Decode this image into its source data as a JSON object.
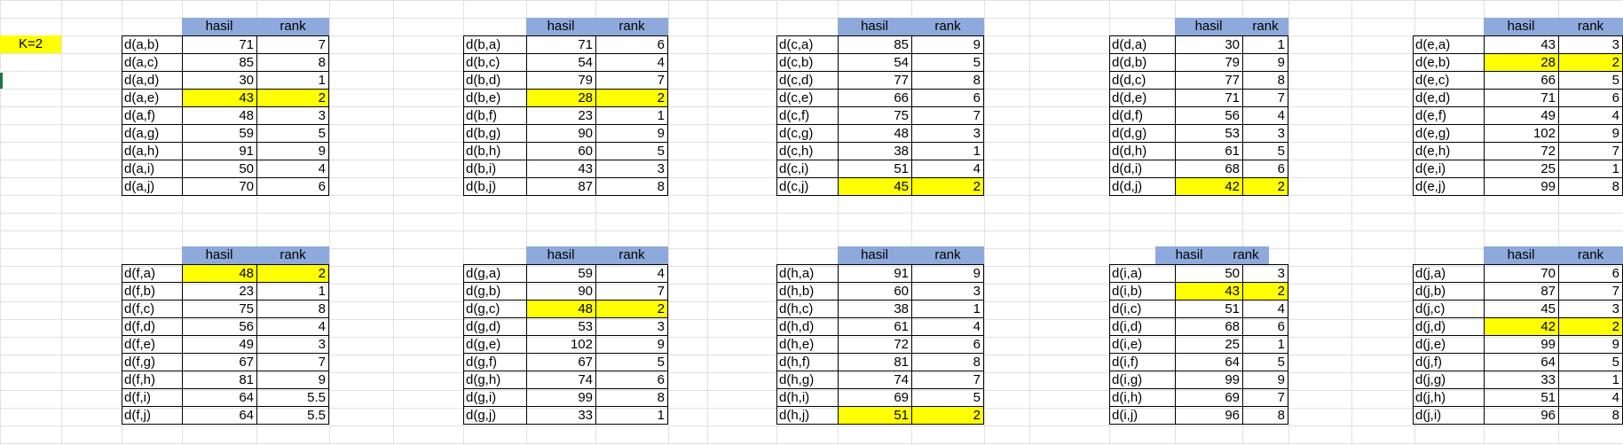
{
  "k_label": "K=2",
  "highlight_color": "#ffff00",
  "header_color": "#8ea9db",
  "headers": {
    "col1": "hasil",
    "col2": "rank"
  },
  "tables": [
    {
      "rows": [
        {
          "label": "d(a,b)",
          "hasil": "71",
          "rank": "7"
        },
        {
          "label": "d(a,c)",
          "hasil": "85",
          "rank": "8"
        },
        {
          "label": "d(a,d)",
          "hasil": "30",
          "rank": "1"
        },
        {
          "label": "d(a,e)",
          "hasil": "43",
          "rank": "2",
          "hl": true
        },
        {
          "label": "d(a,f)",
          "hasil": "48",
          "rank": "3"
        },
        {
          "label": "d(a,g)",
          "hasil": "59",
          "rank": "5"
        },
        {
          "label": "d(a,h)",
          "hasil": "91",
          "rank": "9"
        },
        {
          "label": "d(a,i)",
          "hasil": "50",
          "rank": "4"
        },
        {
          "label": "d(a,j)",
          "hasil": "70",
          "rank": "6"
        }
      ]
    },
    {
      "rows": [
        {
          "label": "d(b,a)",
          "hasil": "71",
          "rank": "6"
        },
        {
          "label": "d(b,c)",
          "hasil": "54",
          "rank": "4"
        },
        {
          "label": "d(b,d)",
          "hasil": "79",
          "rank": "7"
        },
        {
          "label": "d(b,e)",
          "hasil": "28",
          "rank": "2",
          "hl": true
        },
        {
          "label": "d(b,f)",
          "hasil": "23",
          "rank": "1"
        },
        {
          "label": "d(b,g)",
          "hasil": "90",
          "rank": "9"
        },
        {
          "label": "d(b,h)",
          "hasil": "60",
          "rank": "5"
        },
        {
          "label": "d(b,i)",
          "hasil": "43",
          "rank": "3"
        },
        {
          "label": "d(b,j)",
          "hasil": "87",
          "rank": "8"
        }
      ]
    },
    {
      "rows": [
        {
          "label": "d(c,a)",
          "hasil": "85",
          "rank": "9"
        },
        {
          "label": "d(c,b)",
          "hasil": "54",
          "rank": "5"
        },
        {
          "label": "d(c,d)",
          "hasil": "77",
          "rank": "8"
        },
        {
          "label": "d(c,e)",
          "hasil": "66",
          "rank": "6"
        },
        {
          "label": "d(c,f)",
          "hasil": "75",
          "rank": "7"
        },
        {
          "label": "d(c,g)",
          "hasil": "48",
          "rank": "3"
        },
        {
          "label": "d(c,h)",
          "hasil": "38",
          "rank": "1"
        },
        {
          "label": "d(c,i)",
          "hasil": "51",
          "rank": "4"
        },
        {
          "label": "d(c,j)",
          "hasil": "45",
          "rank": "2",
          "hl": true
        }
      ]
    },
    {
      "rows": [
        {
          "label": "d(d,a)",
          "hasil": "30",
          "rank": "1"
        },
        {
          "label": "d(d,b)",
          "hasil": "79",
          "rank": "9"
        },
        {
          "label": "d(d,c)",
          "hasil": "77",
          "rank": "8"
        },
        {
          "label": "d(d,e)",
          "hasil": "71",
          "rank": "7"
        },
        {
          "label": "d(d,f)",
          "hasil": "56",
          "rank": "4"
        },
        {
          "label": "d(d,g)",
          "hasil": "53",
          "rank": "3"
        },
        {
          "label": "d(d,h)",
          "hasil": "61",
          "rank": "5"
        },
        {
          "label": "d(d,i)",
          "hasil": "68",
          "rank": "6"
        },
        {
          "label": "d(d,j)",
          "hasil": "42",
          "rank": "2",
          "hl": true
        }
      ]
    },
    {
      "rows": [
        {
          "label": "d(e,a)",
          "hasil": "43",
          "rank": "3"
        },
        {
          "label": "d(e,b)",
          "hasil": "28",
          "rank": "2",
          "hl": true
        },
        {
          "label": "d(e,c)",
          "hasil": "66",
          "rank": "5"
        },
        {
          "label": "d(e,d)",
          "hasil": "71",
          "rank": "6"
        },
        {
          "label": "d(e,f)",
          "hasil": "49",
          "rank": "4"
        },
        {
          "label": "d(e,g)",
          "hasil": "102",
          "rank": "9"
        },
        {
          "label": "d(e,h)",
          "hasil": "72",
          "rank": "7"
        },
        {
          "label": "d(e,i)",
          "hasil": "25",
          "rank": "1"
        },
        {
          "label": "d(e,j)",
          "hasil": "99",
          "rank": "8"
        }
      ]
    },
    {
      "rows": [
        {
          "label": "d(f,a)",
          "hasil": "48",
          "rank": "2",
          "hl": true
        },
        {
          "label": "d(f,b)",
          "hasil": "23",
          "rank": "1"
        },
        {
          "label": "d(f,c)",
          "hasil": "75",
          "rank": "8"
        },
        {
          "label": "d(f,d)",
          "hasil": "56",
          "rank": "4"
        },
        {
          "label": "d(f,e)",
          "hasil": "49",
          "rank": "3"
        },
        {
          "label": "d(f,g)",
          "hasil": "67",
          "rank": "7"
        },
        {
          "label": "d(f,h)",
          "hasil": "81",
          "rank": "9"
        },
        {
          "label": "d(f,i)",
          "hasil": "64",
          "rank": "5.5"
        },
        {
          "label": "d(f,j)",
          "hasil": "64",
          "rank": "5.5"
        }
      ]
    },
    {
      "rows": [
        {
          "label": "d(g,a)",
          "hasil": "59",
          "rank": "4"
        },
        {
          "label": "d(g,b)",
          "hasil": "90",
          "rank": "7"
        },
        {
          "label": "d(g,c)",
          "hasil": "48",
          "rank": "2",
          "hl": true
        },
        {
          "label": "d(g,d)",
          "hasil": "53",
          "rank": "3"
        },
        {
          "label": "d(g,e)",
          "hasil": "102",
          "rank": "9"
        },
        {
          "label": "d(g,f)",
          "hasil": "67",
          "rank": "5"
        },
        {
          "label": "d(g,h)",
          "hasil": "74",
          "rank": "6"
        },
        {
          "label": "d(g,i)",
          "hasil": "99",
          "rank": "8"
        },
        {
          "label": "d(g,j)",
          "hasil": "33",
          "rank": "1"
        }
      ]
    },
    {
      "rows": [
        {
          "label": "d(h,a)",
          "hasil": "91",
          "rank": "9"
        },
        {
          "label": "d(h,b)",
          "hasil": "60",
          "rank": "3"
        },
        {
          "label": "d(h,c)",
          "hasil": "38",
          "rank": "1"
        },
        {
          "label": "d(h,d)",
          "hasil": "61",
          "rank": "4"
        },
        {
          "label": "d(h,e)",
          "hasil": "72",
          "rank": "6"
        },
        {
          "label": "d(h,f)",
          "hasil": "81",
          "rank": "8"
        },
        {
          "label": "d(h,g)",
          "hasil": "74",
          "rank": "7"
        },
        {
          "label": "d(h,i)",
          "hasil": "69",
          "rank": "5"
        },
        {
          "label": "d(h,j)",
          "hasil": "51",
          "rank": "2",
          "hl": true
        }
      ]
    },
    {
      "rows": [
        {
          "label": "d(i,a)",
          "hasil": "50",
          "rank": "3"
        },
        {
          "label": "d(i,b)",
          "hasil": "43",
          "rank": "2",
          "hl": true
        },
        {
          "label": "d(i,c)",
          "hasil": "51",
          "rank": "4"
        },
        {
          "label": "d(i,d)",
          "hasil": "68",
          "rank": "6"
        },
        {
          "label": "d(i,e)",
          "hasil": "25",
          "rank": "1"
        },
        {
          "label": "d(i,f)",
          "hasil": "64",
          "rank": "5"
        },
        {
          "label": "d(i,g)",
          "hasil": "99",
          "rank": "9"
        },
        {
          "label": "d(i,h)",
          "hasil": "69",
          "rank": "7"
        },
        {
          "label": "d(i,j)",
          "hasil": "96",
          "rank": "8"
        }
      ]
    },
    {
      "rows": [
        {
          "label": "d(j,a)",
          "hasil": "70",
          "rank": "6"
        },
        {
          "label": "d(j,b)",
          "hasil": "87",
          "rank": "7"
        },
        {
          "label": "d(j,c)",
          "hasil": "45",
          "rank": "3"
        },
        {
          "label": "d(j,d)",
          "hasil": "42",
          "rank": "2",
          "hl": true
        },
        {
          "label": "d(j,e)",
          "hasil": "99",
          "rank": "9"
        },
        {
          "label": "d(j,f)",
          "hasil": "64",
          "rank": "5"
        },
        {
          "label": "d(j,g)",
          "hasil": "33",
          "rank": "1"
        },
        {
          "label": "d(j,h)",
          "hasil": "51",
          "rank": "4"
        },
        {
          "label": "d(j,i)",
          "hasil": "96",
          "rank": "8"
        }
      ]
    }
  ]
}
